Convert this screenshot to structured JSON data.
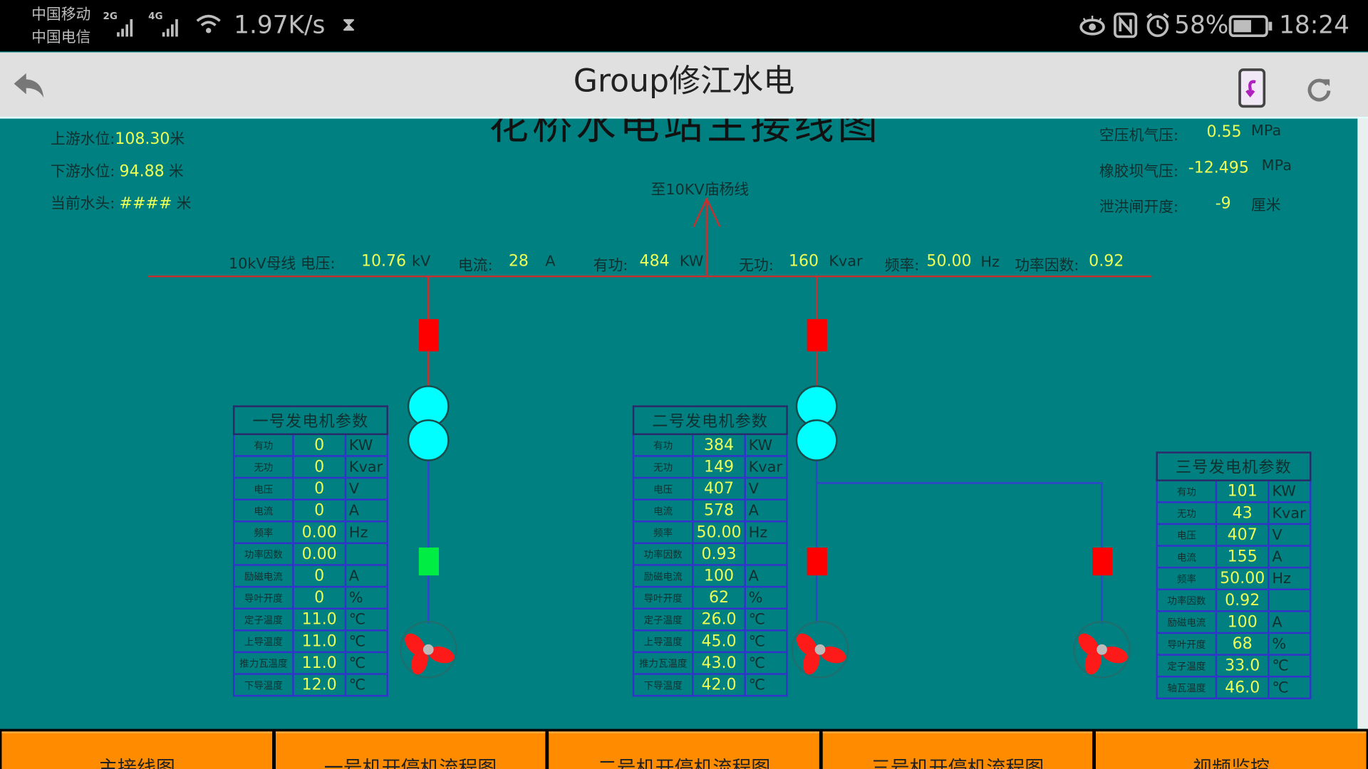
{
  "status_bar": {
    "carrier_1": "中国移动",
    "carrier_2": "中国电信",
    "net_1": "2G",
    "net_2": "4G",
    "speed": "1.97K/s",
    "battery": "58%",
    "time": "18:24",
    "icons": [
      "signal-icon",
      "wifi-icon",
      "hourglass-icon",
      "eye-icon",
      "nfc-icon",
      "alarm-icon",
      "battery-icon"
    ]
  },
  "header": {
    "title": "Group修江水电",
    "icons": [
      "back-icon",
      "phone-rotate-icon",
      "refresh-icon"
    ]
  },
  "diagram": {
    "title": "花桥水电站主接线图",
    "outgoing_line": "至10KV庙杨线",
    "water": [
      {
        "label": "上游水位:",
        "value": "108.30",
        "unit": "米"
      },
      {
        "label": "下游水位:",
        "value": "94.88",
        "unit": "米"
      },
      {
        "label": "当前水头:",
        "value": "####",
        "unit": "米"
      }
    ],
    "pressure": [
      {
        "label": "空压机气压:",
        "value": "0.55",
        "unit": "MPa"
      },
      {
        "label": "橡胶坝气压:",
        "value": "-12.495",
        "unit": "MPa"
      },
      {
        "label": "泄洪闸开度:",
        "value": "-9",
        "unit": "厘米"
      }
    ],
    "bus": {
      "name": "10kV母线",
      "voltage_label": "电压:",
      "voltage": "10.76",
      "voltage_unit": "kV",
      "current_label": "电流:",
      "current": "28",
      "current_unit": "A",
      "active_label": "有功:",
      "active": "484",
      "active_unit": "KW",
      "reactive_label": "无功:",
      "reactive": "160",
      "reactive_unit": "Kvar",
      "freq_label": "频率:",
      "freq": "50.00",
      "freq_unit": "Hz",
      "pf_label": "功率因数:",
      "pf": "0.92"
    },
    "breakers": {
      "top_1": "closed",
      "top_2": "closed",
      "gen_1": "open",
      "gen_2": "closed",
      "gen_3": "closed"
    },
    "colors": {
      "closed": "#ff0000",
      "open": "#00ee44",
      "bus": "#c83030",
      "feeder": "#3344cc",
      "transformer": "#00ffff",
      "background": "#008080",
      "value": "#eeff55",
      "nav": "#ff8c00"
    }
  },
  "generators": [
    {
      "title": "一号发电机参数",
      "rows": [
        {
          "k": "有功",
          "v": "0",
          "u": "KW"
        },
        {
          "k": "无功",
          "v": "0",
          "u": "Kvar"
        },
        {
          "k": "电压",
          "v": "0",
          "u": "V"
        },
        {
          "k": "电流",
          "v": "0",
          "u": "A"
        },
        {
          "k": "频率",
          "v": "0.00",
          "u": "Hz"
        },
        {
          "k": "功率因数",
          "v": "0.00",
          "u": ""
        },
        {
          "k": "励磁电流",
          "v": "0",
          "u": "A"
        },
        {
          "k": "导叶开度",
          "v": "0",
          "u": "%"
        },
        {
          "k": "定子温度",
          "v": "11.0",
          "u": "℃"
        },
        {
          "k": "上导温度",
          "v": "11.0",
          "u": "℃"
        },
        {
          "k": "推力瓦温度",
          "v": "11.0",
          "u": "℃"
        },
        {
          "k": "下导温度",
          "v": "12.0",
          "u": "℃"
        }
      ]
    },
    {
      "title": "二号发电机参数",
      "rows": [
        {
          "k": "有功",
          "v": "384",
          "u": "KW"
        },
        {
          "k": "无功",
          "v": "149",
          "u": "Kvar"
        },
        {
          "k": "电压",
          "v": "407",
          "u": "V"
        },
        {
          "k": "电流",
          "v": "578",
          "u": "A"
        },
        {
          "k": "频率",
          "v": "50.00",
          "u": "Hz"
        },
        {
          "k": "功率因数",
          "v": "0.93",
          "u": ""
        },
        {
          "k": "励磁电流",
          "v": "100",
          "u": "A"
        },
        {
          "k": "导叶开度",
          "v": "62",
          "u": "%"
        },
        {
          "k": "定子温度",
          "v": "26.0",
          "u": "℃"
        },
        {
          "k": "上导温度",
          "v": "45.0",
          "u": "℃"
        },
        {
          "k": "推力瓦温度",
          "v": "43.0",
          "u": "℃"
        },
        {
          "k": "下导温度",
          "v": "42.0",
          "u": "℃"
        }
      ]
    },
    {
      "title": "三号发电机参数",
      "rows": [
        {
          "k": "有功",
          "v": "101",
          "u": "KW"
        },
        {
          "k": "无功",
          "v": "43",
          "u": "Kvar"
        },
        {
          "k": "电压",
          "v": "407",
          "u": "V"
        },
        {
          "k": "电流",
          "v": "155",
          "u": "A"
        },
        {
          "k": "频率",
          "v": "50.00",
          "u": "Hz"
        },
        {
          "k": "功率因数",
          "v": "0.92",
          "u": ""
        },
        {
          "k": "励磁电流",
          "v": "100",
          "u": "A"
        },
        {
          "k": "导叶开度",
          "v": "68",
          "u": "%"
        },
        {
          "k": "定子温度",
          "v": "33.0",
          "u": "℃"
        },
        {
          "k": "轴瓦温度",
          "v": "46.0",
          "u": "℃"
        }
      ]
    }
  ],
  "nav": [
    "主接线图",
    "一号机开停机流程图",
    "二号机开停机流程图",
    "三号机开停机流程图",
    "视频监控"
  ]
}
